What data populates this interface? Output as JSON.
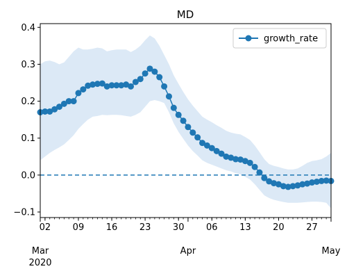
{
  "chart_data": {
    "type": "line",
    "title": "MD",
    "xlabel": "",
    "ylabel": "",
    "xlim": [
      "2020-03-01",
      "2020-05-01"
    ],
    "ylim": [
      -0.115,
      0.41
    ],
    "y_ticks": [
      -0.1,
      0.0,
      0.1,
      0.2,
      0.3,
      0.4
    ],
    "y_tick_labels": [
      "−0.1",
      "0.0",
      "0.1",
      "0.2",
      "0.3",
      "0.4"
    ],
    "x_ticks": [
      {
        "date": "2020-03-02",
        "label": "02"
      },
      {
        "date": "2020-03-09",
        "label": "09"
      },
      {
        "date": "2020-03-16",
        "label": "16"
      },
      {
        "date": "2020-03-23",
        "label": "23"
      },
      {
        "date": "2020-03-30",
        "label": "30"
      },
      {
        "date": "2020-04-06",
        "label": "06"
      },
      {
        "date": "2020-04-13",
        "label": "13"
      },
      {
        "date": "2020-04-20",
        "label": "20"
      },
      {
        "date": "2020-04-27",
        "label": "27"
      }
    ],
    "x_month_ticks": [
      {
        "date": "2020-03-01",
        "label": "Mar",
        "year_label": "2020"
      },
      {
        "date": "2020-04-01",
        "label": "Apr",
        "year_label": ""
      },
      {
        "date": "2020-05-01",
        "label": "May",
        "year_label": ""
      }
    ],
    "legend": {
      "position": "top-right",
      "entries": [
        "growth_rate"
      ]
    },
    "reference_line": {
      "y": 0.0,
      "style": "dashed"
    },
    "colors": {
      "line": "#1f77b4",
      "band": "#dce9f6"
    },
    "series": [
      {
        "name": "growth_rate",
        "x": [
          "2020-03-01",
          "2020-03-02",
          "2020-03-03",
          "2020-03-04",
          "2020-03-05",
          "2020-03-06",
          "2020-03-07",
          "2020-03-08",
          "2020-03-09",
          "2020-03-10",
          "2020-03-11",
          "2020-03-12",
          "2020-03-13",
          "2020-03-14",
          "2020-03-15",
          "2020-03-16",
          "2020-03-17",
          "2020-03-18",
          "2020-03-19",
          "2020-03-20",
          "2020-03-21",
          "2020-03-22",
          "2020-03-23",
          "2020-03-24",
          "2020-03-25",
          "2020-03-26",
          "2020-03-27",
          "2020-03-28",
          "2020-03-29",
          "2020-03-30",
          "2020-03-31",
          "2020-04-01",
          "2020-04-02",
          "2020-04-03",
          "2020-04-04",
          "2020-04-05",
          "2020-04-06",
          "2020-04-07",
          "2020-04-08",
          "2020-04-09",
          "2020-04-10",
          "2020-04-11",
          "2020-04-12",
          "2020-04-13",
          "2020-04-14",
          "2020-04-15",
          "2020-04-16",
          "2020-04-17",
          "2020-04-18",
          "2020-04-19",
          "2020-04-20",
          "2020-04-21",
          "2020-04-22",
          "2020-04-23",
          "2020-04-24",
          "2020-04-25",
          "2020-04-26",
          "2020-04-27",
          "2020-04-28",
          "2020-04-29",
          "2020-04-30",
          "2020-05-01"
        ],
        "values": [
          0.17,
          0.172,
          0.172,
          0.178,
          0.185,
          0.193,
          0.2,
          0.2,
          0.222,
          0.232,
          0.242,
          0.245,
          0.247,
          0.248,
          0.24,
          0.243,
          0.243,
          0.243,
          0.245,
          0.24,
          0.252,
          0.26,
          0.275,
          0.288,
          0.28,
          0.265,
          0.24,
          0.213,
          0.182,
          0.163,
          0.147,
          0.13,
          0.115,
          0.102,
          0.087,
          0.08,
          0.073,
          0.065,
          0.058,
          0.05,
          0.047,
          0.043,
          0.042,
          0.038,
          0.033,
          0.022,
          0.007,
          -0.008,
          -0.017,
          -0.022,
          -0.025,
          -0.03,
          -0.032,
          -0.03,
          -0.028,
          -0.025,
          -0.023,
          -0.02,
          -0.018,
          -0.016,
          -0.015,
          -0.016
        ],
        "lower": [
          0.04,
          0.05,
          0.06,
          0.068,
          0.075,
          0.083,
          0.095,
          0.108,
          0.125,
          0.138,
          0.15,
          0.158,
          0.16,
          0.163,
          0.162,
          0.163,
          0.163,
          0.162,
          0.16,
          0.158,
          0.163,
          0.17,
          0.185,
          0.2,
          0.203,
          0.2,
          0.195,
          0.17,
          0.14,
          0.117,
          0.098,
          0.08,
          0.065,
          0.053,
          0.04,
          0.033,
          0.028,
          0.023,
          0.018,
          0.013,
          0.01,
          0.005,
          0.002,
          -0.005,
          -0.012,
          -0.025,
          -0.04,
          -0.055,
          -0.062,
          -0.067,
          -0.07,
          -0.073,
          -0.075,
          -0.075,
          -0.075,
          -0.074,
          -0.073,
          -0.072,
          -0.072,
          -0.073,
          -0.075,
          -0.09
        ],
        "upper": [
          0.3,
          0.308,
          0.31,
          0.306,
          0.3,
          0.305,
          0.32,
          0.335,
          0.345,
          0.34,
          0.34,
          0.342,
          0.345,
          0.343,
          0.335,
          0.338,
          0.34,
          0.34,
          0.34,
          0.333,
          0.34,
          0.35,
          0.365,
          0.378,
          0.37,
          0.35,
          0.325,
          0.3,
          0.27,
          0.247,
          0.225,
          0.205,
          0.188,
          0.173,
          0.158,
          0.15,
          0.143,
          0.135,
          0.128,
          0.12,
          0.115,
          0.112,
          0.11,
          0.103,
          0.095,
          0.08,
          0.062,
          0.043,
          0.03,
          0.025,
          0.022,
          0.018,
          0.015,
          0.015,
          0.018,
          0.025,
          0.033,
          0.038,
          0.04,
          0.043,
          0.05,
          0.06
        ]
      }
    ]
  }
}
